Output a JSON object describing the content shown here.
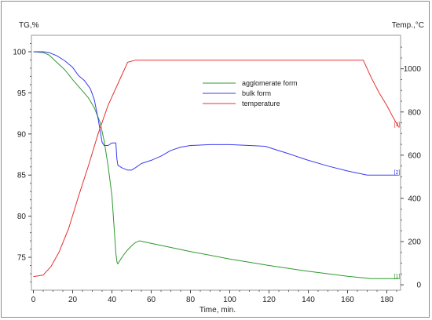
{
  "chart_data": {
    "type": "line",
    "xlabel": "Time, min.",
    "ylabel_left": "TG,%",
    "ylabel_right": "Temp.,°C",
    "xlim": [
      -1,
      187
    ],
    "ylim_left": [
      71,
      102
    ],
    "ylim_right": [
      -25,
      1155
    ],
    "x_ticks": [
      0,
      20,
      40,
      60,
      80,
      100,
      120,
      140,
      160,
      180
    ],
    "y_left_ticks": [
      75,
      80,
      85,
      90,
      95,
      100
    ],
    "y_right_ticks": [
      0,
      200,
      400,
      600,
      800,
      1000
    ],
    "grid": false,
    "legend_position": "upper-center",
    "series": [
      {
        "name": "agglomerate form",
        "axis": "left",
        "color": "#2e9a2e",
        "end_marker": "[1]",
        "points": [
          [
            0,
            100
          ],
          [
            5,
            99.9
          ],
          [
            8,
            99.6
          ],
          [
            12,
            98.7
          ],
          [
            16,
            97.8
          ],
          [
            20,
            96.6
          ],
          [
            24,
            95.5
          ],
          [
            28,
            94.4
          ],
          [
            31,
            93.2
          ],
          [
            34,
            91.4
          ],
          [
            36,
            89.2
          ],
          [
            38,
            86.2
          ],
          [
            40,
            82.5
          ],
          [
            41,
            79
          ],
          [
            42,
            75.5
          ],
          [
            42.6,
            74.4
          ],
          [
            43,
            74.2
          ],
          [
            44,
            74.6
          ],
          [
            46,
            75.3
          ],
          [
            48,
            75.9
          ],
          [
            50,
            76.4
          ],
          [
            52,
            76.8
          ],
          [
            54,
            77
          ],
          [
            56,
            76.9
          ],
          [
            60,
            76.7
          ],
          [
            70,
            76.2
          ],
          [
            80,
            75.7
          ],
          [
            100,
            74.8
          ],
          [
            120,
            74
          ],
          [
            140,
            73.3
          ],
          [
            160,
            72.7
          ],
          [
            172,
            72.4
          ],
          [
            186,
            72.4
          ]
        ]
      },
      {
        "name": "bulk form",
        "axis": "left",
        "color": "#3a3af2",
        "end_marker": "[2]",
        "points": [
          [
            0,
            100
          ],
          [
            5,
            100
          ],
          [
            8,
            99.9
          ],
          [
            12,
            99.5
          ],
          [
            16,
            98.9
          ],
          [
            20,
            98.1
          ],
          [
            23,
            97.1
          ],
          [
            26,
            96.5
          ],
          [
            29,
            95.5
          ],
          [
            31,
            94.2
          ],
          [
            33,
            91.8
          ],
          [
            35,
            89
          ],
          [
            36,
            88.6
          ],
          [
            38,
            88.6
          ],
          [
            40,
            88.9
          ],
          [
            42,
            88.9
          ],
          [
            42.5,
            87
          ],
          [
            43,
            86.2
          ],
          [
            45,
            85.9
          ],
          [
            48,
            85.6
          ],
          [
            50,
            85.6
          ],
          [
            52,
            85.9
          ],
          [
            55,
            86.4
          ],
          [
            60,
            86.8
          ],
          [
            65,
            87.3
          ],
          [
            70,
            88
          ],
          [
            75,
            88.4
          ],
          [
            80,
            88.6
          ],
          [
            90,
            88.7
          ],
          [
            100,
            88.7
          ],
          [
            110,
            88.6
          ],
          [
            118,
            88.5
          ],
          [
            130,
            87.6
          ],
          [
            140,
            86.8
          ],
          [
            150,
            86.1
          ],
          [
            160,
            85.5
          ],
          [
            170,
            85
          ],
          [
            186,
            85
          ]
        ]
      },
      {
        "name": "temperature",
        "axis": "right",
        "color": "#e83030",
        "end_marker": "[3]",
        "points": [
          [
            0,
            38
          ],
          [
            5,
            45
          ],
          [
            9,
            85
          ],
          [
            13,
            150
          ],
          [
            18,
            262
          ],
          [
            23,
            410
          ],
          [
            28,
            550
          ],
          [
            33,
            700
          ],
          [
            38,
            830
          ],
          [
            44,
            950
          ],
          [
            48,
            1030
          ],
          [
            52,
            1040
          ],
          [
            60,
            1040
          ],
          [
            100,
            1040
          ],
          [
            140,
            1040
          ],
          [
            165,
            1040
          ],
          [
            168,
            1040
          ],
          [
            172,
            960
          ],
          [
            176,
            890
          ],
          [
            180,
            830
          ],
          [
            183,
            778
          ],
          [
            186,
            730
          ]
        ]
      }
    ]
  }
}
